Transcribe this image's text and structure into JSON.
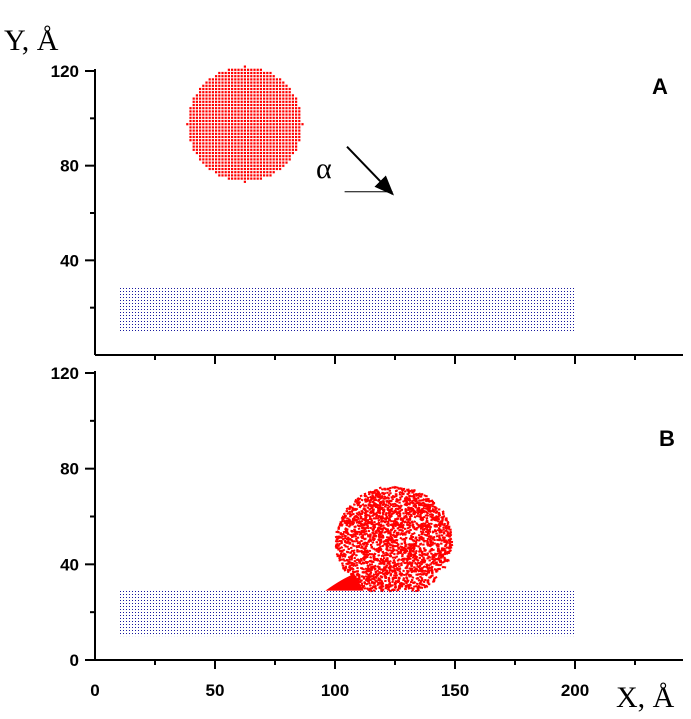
{
  "chart_data": {
    "type": "scatter",
    "xlabel": "X, Å",
    "ylabel": "Y, Å",
    "xlim": [
      0,
      247
    ],
    "xticks": [
      0,
      50,
      100,
      150,
      200
    ],
    "x_tick_labels": [
      "0",
      "50",
      "100",
      "150",
      "200"
    ],
    "x_minor_ticks": [
      25,
      75,
      125,
      175,
      225
    ],
    "colors": {
      "droplet": "#ff0000",
      "substrate": "#1a1aa0",
      "axes": "#000000"
    },
    "panels": [
      {
        "label": "A",
        "ylim": [
          0,
          120
        ],
        "yticks": [
          40,
          80,
          120
        ],
        "y_tick_labels": [
          "40",
          "80",
          "120"
        ],
        "y_minor_ticks": [
          20,
          60,
          100
        ],
        "annotation": {
          "text": "α",
          "arrow_from": [
            105,
            88
          ],
          "arrow_to": [
            124,
            68
          ],
          "base_from": [
            104,
            69
          ],
          "base_to": [
            124,
            69
          ]
        },
        "series": [
          {
            "kind": "droplet",
            "shape": "sphere",
            "center": [
              62,
              98
            ],
            "radius": 24
          },
          {
            "kind": "substrate",
            "shape": "slab",
            "x_range": [
              10,
              200
            ],
            "y_range": [
              10,
              29
            ]
          }
        ]
      },
      {
        "label": "B",
        "ylim": [
          0,
          120
        ],
        "yticks": [
          0,
          40,
          80,
          120
        ],
        "y_tick_labels": [
          "0",
          "40",
          "80",
          "120"
        ],
        "y_minor_ticks": [
          20,
          60,
          100
        ],
        "series": [
          {
            "kind": "droplet",
            "shape": "spread",
            "center": [
              124,
              50
            ],
            "radius": 22,
            "spread_x_range": [
              96,
              142
            ],
            "base_y": 29
          },
          {
            "kind": "substrate",
            "shape": "slab",
            "x_range": [
              10,
              200
            ],
            "y_range": [
              10,
              29
            ]
          }
        ]
      }
    ]
  }
}
